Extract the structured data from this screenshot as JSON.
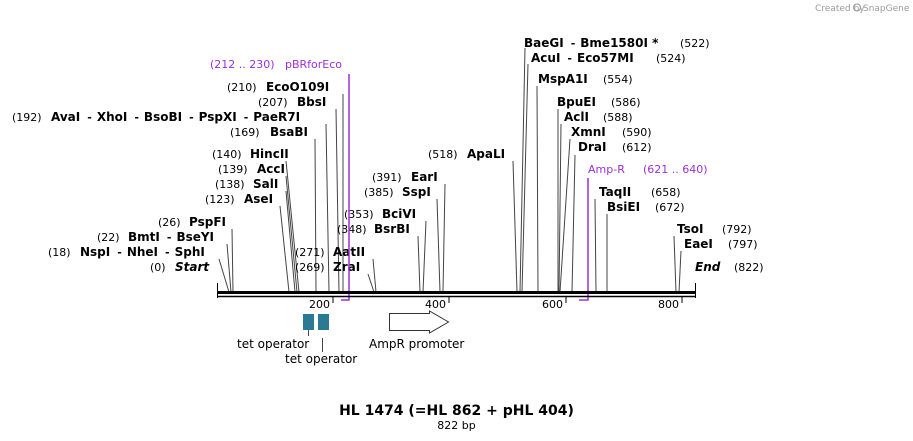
{
  "credit": "Created by",
  "brand": "SnapGene",
  "title": "HL 1474 (=HL 862 + pHL 404)",
  "length": "822 bp",
  "ticks": [
    "200",
    "400",
    "600",
    "800"
  ],
  "sites": [
    {
      "pos": "(522)",
      "parts": [
        "BaeGI",
        "Bme1580I *"
      ]
    },
    {
      "pos": "(524)",
      "parts": [
        "AcuI",
        "Eco57MI"
      ]
    },
    {
      "pos": "(554)",
      "parts": [
        "MspA1I"
      ]
    },
    {
      "pos": "(586)",
      "parts": [
        "BpuEI"
      ]
    },
    {
      "pos": "(588)",
      "parts": [
        "AclI"
      ]
    },
    {
      "pos": "(590)",
      "parts": [
        "XmnI"
      ]
    },
    {
      "pos": "(612)",
      "parts": [
        "DraI"
      ]
    },
    {
      "pos": "(658)",
      "parts": [
        "TaqII"
      ]
    },
    {
      "pos": "(672)",
      "parts": [
        "BsiEI"
      ]
    },
    {
      "pos": "(792)",
      "parts": [
        "TsoI"
      ]
    },
    {
      "pos": "(797)",
      "parts": [
        "EaeI"
      ]
    },
    {
      "pos": "(822)",
      "parts": [
        "End"
      ]
    },
    {
      "pos": "(518)",
      "parts": [
        "ApaLI"
      ]
    },
    {
      "pos": "(391)",
      "parts": [
        "EarI"
      ]
    },
    {
      "pos": "(385)",
      "parts": [
        "SspI"
      ]
    },
    {
      "pos": "(353)",
      "parts": [
        "BciVI"
      ]
    },
    {
      "pos": "(348)",
      "parts": [
        "BsrBI"
      ]
    },
    {
      "pos": "(271)",
      "parts": [
        "AatII"
      ]
    },
    {
      "pos": "(269)",
      "parts": [
        "ZraI"
      ]
    },
    {
      "pos": "(210)",
      "parts": [
        "EcoO109I"
      ]
    },
    {
      "pos": "(207)",
      "parts": [
        "BbsI"
      ]
    },
    {
      "pos": "(192)",
      "parts": [
        "AvaI",
        "XhoI",
        "BsoBI",
        "PspXI",
        "PaeR7I"
      ]
    },
    {
      "pos": "(169)",
      "parts": [
        "BsaBI"
      ]
    },
    {
      "pos": "(140)",
      "parts": [
        "HincII"
      ]
    },
    {
      "pos": "(139)",
      "parts": [
        "AccI"
      ]
    },
    {
      "pos": "(138)",
      "parts": [
        "SalI"
      ]
    },
    {
      "pos": "(123)",
      "parts": [
        "AseI"
      ]
    },
    {
      "pos": "(26)",
      "parts": [
        "PspFI"
      ]
    },
    {
      "pos": "(22)",
      "parts": [
        "BmtI",
        "BseYI"
      ]
    },
    {
      "pos": "(18)",
      "parts": [
        "NspI",
        "NheI",
        "SphI"
      ]
    },
    {
      "pos": "(0)",
      "parts": [
        "Start"
      ]
    }
  ],
  "primers": [
    {
      "name": "pBRforEco",
      "range": "(212 .. 230)"
    },
    {
      "name": "Amp-R",
      "range": "(621 .. 640)"
    }
  ],
  "features": [
    "tet operator",
    "tet operator",
    "AmpR promoter"
  ],
  "colors": {
    "primer": "#9b30d9",
    "operator": "#2a7a93",
    "backbone": "#000000",
    "leader": "#444444"
  }
}
